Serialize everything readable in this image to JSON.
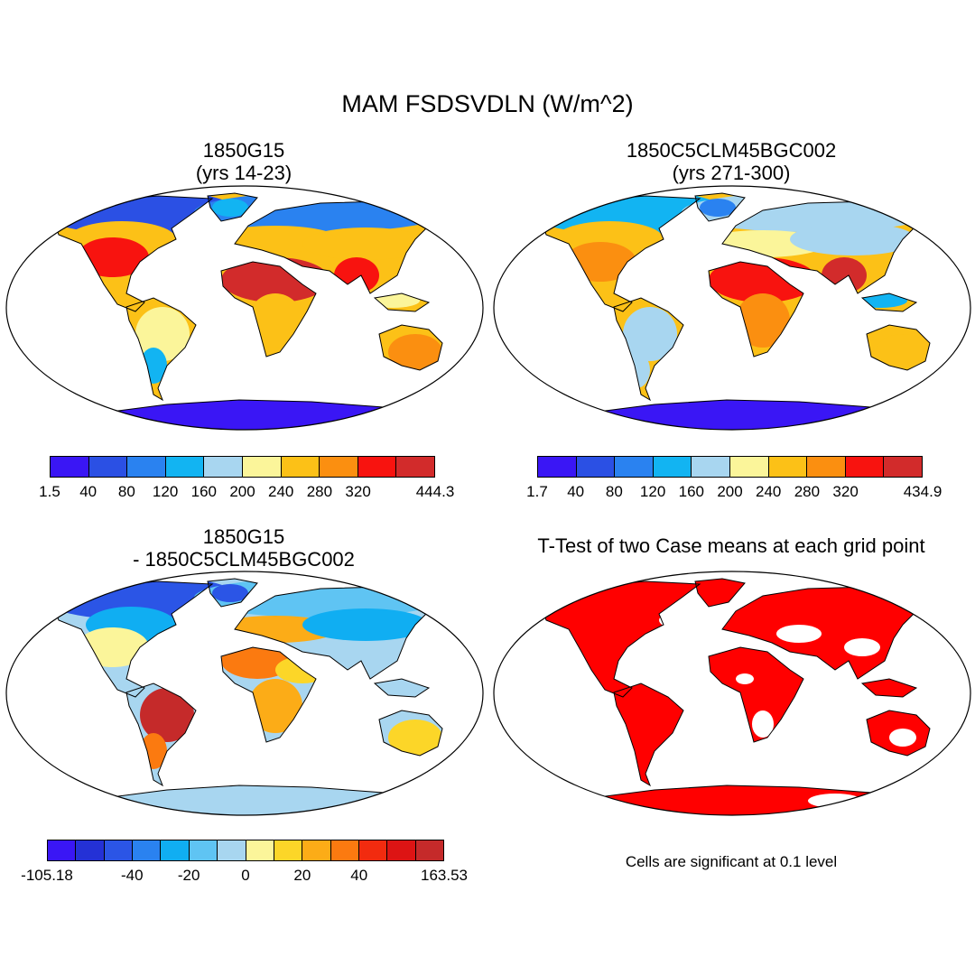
{
  "figure": {
    "title": "MAM FSDSVDLN (W/m^2)",
    "panels": [
      {
        "id": "case1",
        "title_line1": "1850G15",
        "title_line2": "(yrs 14-23)"
      },
      {
        "id": "case2",
        "title_line1": "1850C5CLM45BGC002",
        "title_line2": "(yrs 271-300)"
      },
      {
        "id": "diff",
        "title_line1": "1850G15",
        "title_line2": "- 1850C5CLM45BGC002"
      },
      {
        "id": "ttest",
        "title_line1": "T-Test of two Case means at each grid point",
        "title_line2": ""
      }
    ],
    "note": "Cells are significant at 0.1 level"
  },
  "chart_data": [
    {
      "type": "heatmap",
      "title": "1850G15 (yrs 14-23)",
      "colorbar": {
        "colors": [
          "#3a16f5",
          "#2b50e4",
          "#2a82f0",
          "#12b4f2",
          "#a8d6f0",
          "#fbf59a",
          "#fcc117",
          "#fb8f10",
          "#f8130f",
          "#d22b2b"
        ],
        "labels": [
          "1.5",
          "40",
          "80",
          "120",
          "160",
          "200",
          "240",
          "280",
          "320",
          "444.3"
        ],
        "min": 1.5,
        "max": 444.3
      }
    },
    {
      "type": "heatmap",
      "title": "1850C5CLM45BGC002 (yrs 271-300)",
      "colorbar": {
        "colors": [
          "#3a16f5",
          "#2b50e4",
          "#2a82f0",
          "#12b4f2",
          "#a8d6f0",
          "#fbf59a",
          "#fcc117",
          "#fb8f10",
          "#f8130f",
          "#d22b2b"
        ],
        "labels": [
          "1.7",
          "40",
          "80",
          "120",
          "160",
          "200",
          "240",
          "280",
          "320",
          "434.9"
        ],
        "min": 1.7,
        "max": 434.9
      }
    },
    {
      "type": "heatmap",
      "title": "1850G15 - 1850C5CLM45BGC002",
      "colorbar": {
        "colors": [
          "#3a16f5",
          "#2431d6",
          "#2b55e6",
          "#2a82f0",
          "#10aef2",
          "#5fc4f3",
          "#a8d6f0",
          "#fbf59a",
          "#fcd628",
          "#fcac17",
          "#fb7a10",
          "#f22b0f",
          "#dd1414",
          "#c52a2a"
        ],
        "labels": [
          "-105.18",
          "-40",
          "-20",
          "0",
          "20",
          "40",
          "163.53"
        ],
        "min": -105.18,
        "max": 163.53
      }
    },
    {
      "type": "heatmap",
      "title": "T-Test of two Case means at each grid point",
      "significant_color": "#ff0000",
      "significance_level": 0.1
    }
  ]
}
